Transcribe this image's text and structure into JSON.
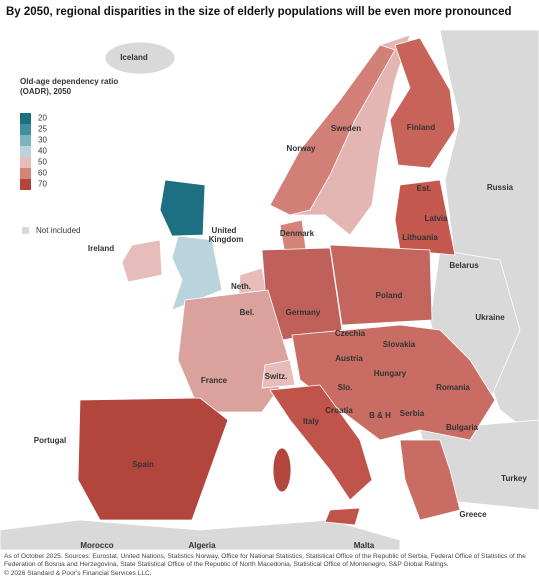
{
  "title": "By 2050, regional disparities in the size of elderly populations will be even more pronounced",
  "legend": {
    "title_lines": [
      "Old-age dependency ratio",
      "(OADR), 2050"
    ],
    "items": [
      {
        "value": 20,
        "color": "#1d6f82"
      },
      {
        "value": 25,
        "color": "#3f8fa0"
      },
      {
        "value": 30,
        "color": "#7fb2c1"
      },
      {
        "value": 40,
        "color": "#b9d4dd"
      },
      {
        "value": 50,
        "color": "#e6bdbb"
      },
      {
        "value": 60,
        "color": "#d48379"
      },
      {
        "value": 70,
        "color": "#b2463d"
      }
    ],
    "not_included": {
      "label": "Not included",
      "color": "#d9d9d9"
    }
  },
  "labels": [
    "Iceland",
    "Sweden",
    "Finland",
    "Norway",
    "Russia",
    "Est.",
    "Latvia",
    "Lithuania",
    "Denmark",
    "United",
    "Kingdom",
    "Ireland",
    "Belarus",
    "Neth.",
    "Poland",
    "Bel.",
    "Germany",
    "Ukraine",
    "Czechia",
    "Slovakia",
    "Austria",
    "France",
    "Hungary",
    "Switz.",
    "Romania",
    "Slo.",
    "Croatia",
    "B & H",
    "Serbia",
    "Bulgaria",
    "Italy",
    "Portugal",
    "Spain",
    "Turkey",
    "Greece",
    "Morocco",
    "Algeria",
    "Malta"
  ],
  "footnote": [
    "As of October 2025. Sources: Eurostat, United Nations, Statistics Norway, Office for National Statistics, Statistical Office of the Republic of Serbia, Federal Office of Statistics of the Federation of Bosnia and Herzegovina, State Statistical Office of the Republic of North Macedonia, Statistical Office of Montenegro, S&P Global Ratings.",
    "© 2026 Standard & Poor's Financial Services LLC."
  ]
}
